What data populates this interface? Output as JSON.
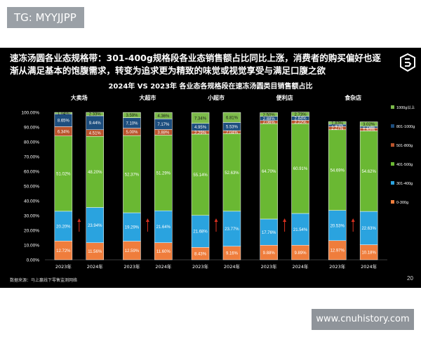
{
  "tag": "TG: MYYJJPP",
  "headline": "速冻汤圆各业态规格带：301-400g规格段各业态销售额占比同比上涨，消费者的购买偏好也逐渐从满足基本的饱腹需求，转变为追求更为精致的味觉或视觉享受与满足口腹之欲",
  "source": "数据来源：马上赢线下零售监测网络",
  "page_number": "20",
  "watermark": "www.cnuhistory.com",
  "chart_data": {
    "type": "bar",
    "stacked": true,
    "title": "2024年 VS 2023年 各业态各规格段在速冻汤圆类目销售额占比",
    "groups": [
      "大卖场",
      "大超市",
      "小超市",
      "便利店",
      "食杂店"
    ],
    "categories": [
      "2023年",
      "2024年",
      "2023年",
      "2024年",
      "2023年",
      "2024年",
      "2023年",
      "2024年",
      "2023年",
      "2024年"
    ],
    "ylim": [
      0,
      100
    ],
    "yticks": [
      "0.00%",
      "10.00%",
      "20.00%",
      "30.00%",
      "40.00%",
      "50.00%",
      "60.00%",
      "70.00%",
      "80.00%",
      "90.00%",
      "100.00%"
    ],
    "legend_position": "right",
    "series": [
      {
        "name": "0-300g",
        "color": "#ef7d3c",
        "values": [
          12.72,
          11.56,
          12.59,
          11.6,
          8.43,
          9.16,
          9.88,
          9.89,
          12.97,
          10.18
        ],
        "labels": [
          "12.72%",
          "11.56%",
          "12.59%",
          "11.60%",
          "8.43%",
          "9.16%",
          "9.88%",
          "9.89%",
          "12.97%",
          "10.18%"
        ]
      },
      {
        "name": "301-400g",
        "color": "#2aa3df",
        "values": [
          20.2,
          23.94,
          19.29,
          21.64,
          21.68,
          23.77,
          17.76,
          21.54,
          20.53,
          22.63
        ],
        "labels": [
          "20.20%",
          "23.94%",
          "19.29%",
          "21.64%",
          "21.68%",
          "23.77%",
          "17.76%",
          "21.54%",
          "20.53%",
          "22.63%"
        ]
      },
      {
        "name": "401-500g",
        "color": "#6ab833",
        "values": [
          51.02,
          48.2,
          52.37,
          51.29,
          55.14,
          52.63,
          64.7,
          60.91,
          54.69,
          54.62
        ],
        "labels": [
          "51.02%",
          "48.20%",
          "52.37%",
          "51.29%",
          "55.14%",
          "52.63%",
          "64.70%",
          "60.91%",
          "54.69%",
          "54.62%"
        ]
      },
      {
        "name": "501-800g",
        "color": "#b9532b",
        "values": [
          6.34,
          4.51,
          5.0,
          3.88,
          2.29,
          2.04,
          2.06,
          2.22,
          2.27,
          1.93
        ],
        "labels": [
          "6.34%",
          "4.51%",
          "5.00%",
          "3.88%",
          "2.29%",
          "2.04%",
          "2.06%",
          "2.22%",
          "2.27%",
          "1.93%"
        ]
      },
      {
        "name": "801-1000g",
        "color": "#1d4e7e",
        "values": [
          8.65,
          9.44,
          7.1,
          7.17,
          4.95,
          5.53,
          2.88,
          2.84,
          1.45,
          1.19
        ],
        "labels": [
          "8.65%",
          "9.44%",
          "7.10%",
          "7.17%",
          "4.95%",
          "5.53%",
          "2.88%",
          "2.84%",
          "1.45%",
          "1.19%"
        ]
      },
      {
        "name": "1000g以上",
        "color": "#7cba4a",
        "values": [
          1.04,
          2.33,
          3.59,
          4.36,
          7.34,
          6.81,
          2.5,
          2.73,
          1.83,
          3.02
        ],
        "labels": [
          "1.04%",
          "2.33%",
          "3.59%",
          "4.36%",
          "7.34%",
          "6.81%",
          "2.50%",
          "2.73%",
          "1.83%",
          "3.02%"
        ]
      }
    ]
  }
}
